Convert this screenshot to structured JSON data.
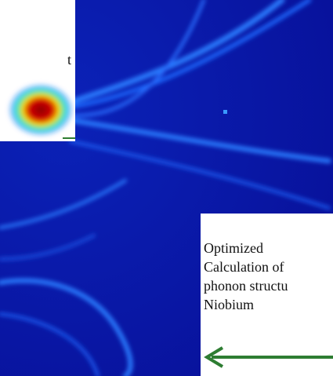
{
  "left_note": {
    "text": "t"
  },
  "right_note": {
    "lines": [
      "Optimized",
      "Calculation of",
      "phonon structu",
      "Niobium"
    ]
  }
}
